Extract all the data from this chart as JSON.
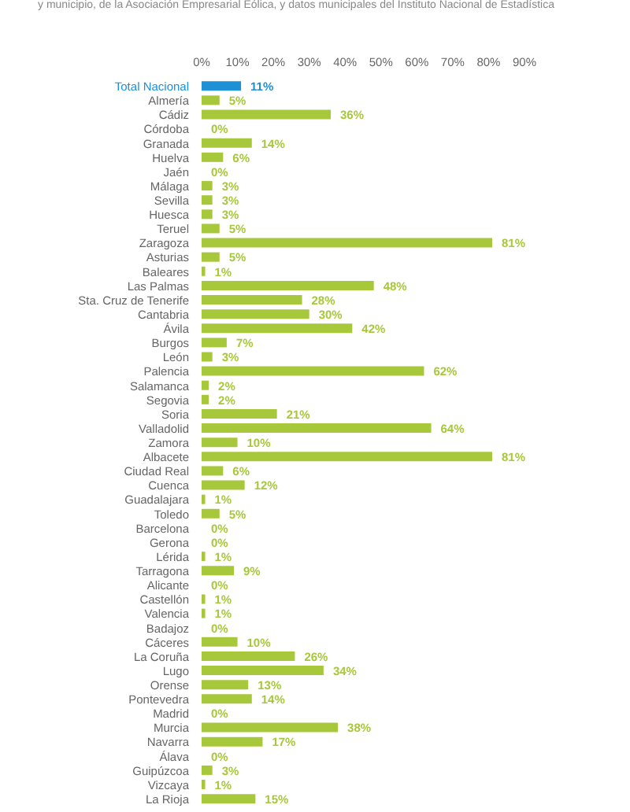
{
  "chart_data": {
    "type": "bar",
    "orientation": "horizontal",
    "subtitle": "y municipio, de la Asociación Empresarial Eólica, y datos municipales del Instituto Nacional de Estadística",
    "categories": [
      "Total Nacional",
      "Almería",
      "Cádiz",
      "Córdoba",
      "Granada",
      "Huelva",
      "Jaén",
      "Málaga",
      "Sevilla",
      "Huesca",
      "Teruel",
      "Zaragoza",
      "Asturias",
      "Baleares",
      "Las Palmas",
      "Sta. Cruz de Tenerife",
      "Cantabria",
      "Ávila",
      "Burgos",
      "León",
      "Palencia",
      "Salamanca",
      "Segovia",
      "Soria",
      "Valladolid",
      "Zamora",
      "Albacete",
      "Ciudad Real",
      "Cuenca",
      "Guadalajara",
      "Toledo",
      "Barcelona",
      "Gerona",
      "Lérida",
      "Tarragona",
      "Alicante",
      "Castellón",
      "Valencia",
      "Badajoz",
      "Cáceres",
      "La Coruña",
      "Lugo",
      "Orense",
      "Pontevedra",
      "Madrid",
      "Murcia",
      "Navarra",
      "Álava",
      "Guipúzcoa",
      "Vizcaya",
      "La Rioja"
    ],
    "values": [
      11,
      5,
      36,
      0,
      14,
      6,
      0,
      3,
      3,
      3,
      5,
      81,
      5,
      1,
      48,
      28,
      30,
      42,
      7,
      3,
      62,
      2,
      2,
      21,
      64,
      10,
      81,
      6,
      12,
      1,
      5,
      0,
      0,
      1,
      9,
      0,
      1,
      1,
      0,
      10,
      26,
      34,
      13,
      14,
      0,
      38,
      17,
      0,
      3,
      1,
      15
    ],
    "value_labels": [
      "11%",
      "5%",
      "36%",
      "0%",
      "14%",
      "6%",
      "0%",
      "3%",
      "3%",
      "3%",
      "5%",
      "81%",
      "5%",
      "1%",
      "48%",
      "28%",
      "30%",
      "42%",
      "7%",
      "3%",
      "62%",
      "2%",
      "2%",
      "21%",
      "64%",
      "10%",
      "81%",
      "6%",
      "12%",
      "1%",
      "5%",
      "0%",
      "0%",
      "1%",
      "9%",
      "0%",
      "1%",
      "1%",
      "0%",
      "10%",
      "26%",
      "34%",
      "13%",
      "14%",
      "0%",
      "38%",
      "17%",
      "0%",
      "3%",
      "1%",
      "15%"
    ],
    "colors": [
      "#1f8fd6",
      "#a8c83c",
      "#a8c83c",
      "#a8c83c",
      "#a8c83c",
      "#a8c83c",
      "#a8c83c",
      "#a8c83c",
      "#a8c83c",
      "#a8c83c",
      "#a8c83c",
      "#a8c83c",
      "#a8c83c",
      "#a8c83c",
      "#a8c83c",
      "#a8c83c",
      "#a8c83c",
      "#a8c83c",
      "#a8c83c",
      "#a8c83c",
      "#a8c83c",
      "#a8c83c",
      "#a8c83c",
      "#a8c83c",
      "#a8c83c",
      "#a8c83c",
      "#a8c83c",
      "#a8c83c",
      "#a8c83c",
      "#a8c83c",
      "#a8c83c",
      "#a8c83c",
      "#a8c83c",
      "#a8c83c",
      "#a8c83c",
      "#a8c83c",
      "#a8c83c",
      "#a8c83c",
      "#a8c83c",
      "#a8c83c",
      "#a8c83c",
      "#a8c83c",
      "#a8c83c",
      "#a8c83c",
      "#a8c83c",
      "#a8c83c",
      "#a8c83c",
      "#a8c83c",
      "#a8c83c",
      "#a8c83c",
      "#a8c83c"
    ],
    "xlim": [
      0,
      90
    ],
    "xticks": [
      {
        "value": 0,
        "label": "0%"
      },
      {
        "value": 10,
        "label": "10%"
      },
      {
        "value": 20,
        "label": "20%"
      },
      {
        "value": 30,
        "label": "30%"
      },
      {
        "value": 40,
        "label": "40%"
      },
      {
        "value": 50,
        "label": "50%"
      },
      {
        "value": 60,
        "label": "60%"
      },
      {
        "value": 70,
        "label": "70%"
      },
      {
        "value": 80,
        "label": "80%"
      },
      {
        "value": 90,
        "label": "90%"
      }
    ],
    "grid": false
  }
}
